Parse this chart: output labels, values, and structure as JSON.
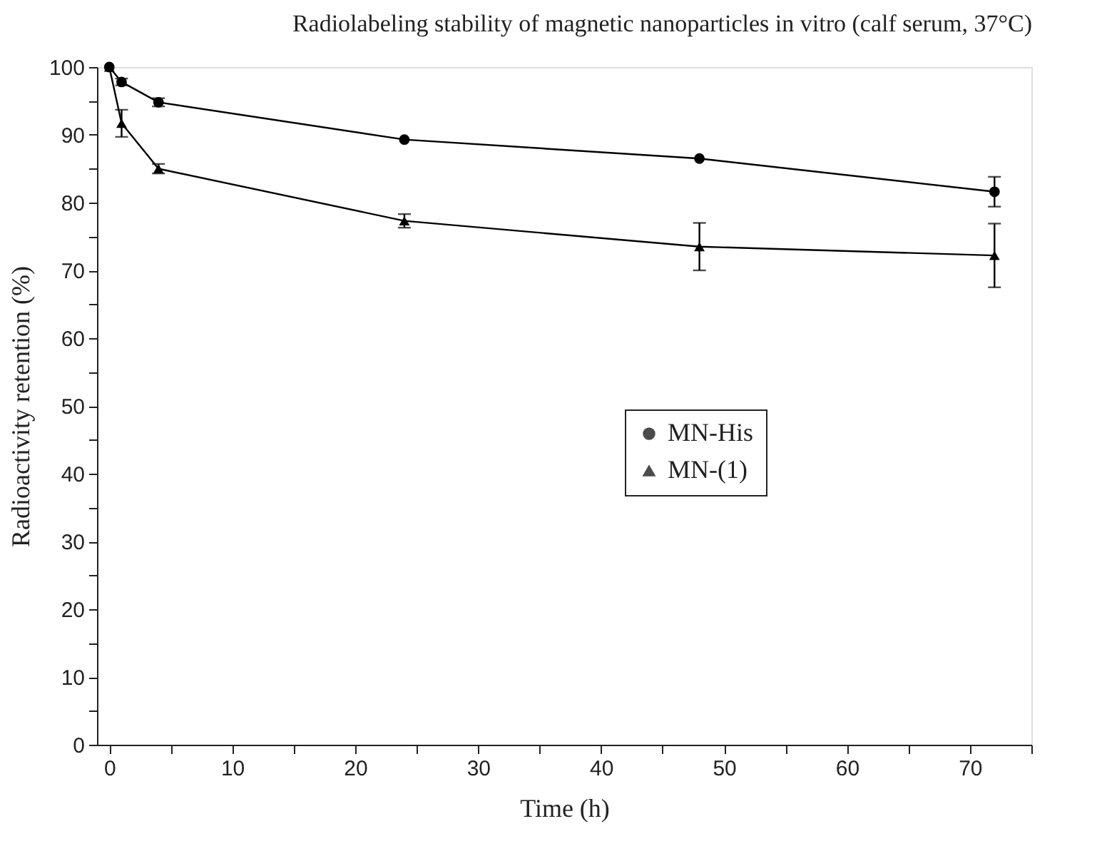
{
  "chart_data": {
    "type": "line",
    "title": "Radiolabeling stability of magnetic nanoparticles in vitro (calf serum, 37°C)",
    "xlabel": "Time (h)",
    "ylabel": "Radioactivity retention (%)",
    "x": [
      0,
      1,
      4,
      24,
      48,
      72
    ],
    "series": [
      {
        "name": "MN-His",
        "color": "#000000",
        "marker": "circle",
        "values": [
          100,
          97.8,
          94.8,
          89.3,
          86.5,
          81.6
        ],
        "errors": [
          null,
          0.5,
          0.6,
          null,
          null,
          2.2
        ]
      },
      {
        "name": "MN-(1)",
        "color": "#000000",
        "marker": "triangle",
        "values": [
          100,
          91.7,
          85.0,
          77.3,
          73.5,
          72.2
        ],
        "errors": [
          null,
          2.0,
          0.7,
          1.0,
          3.5,
          4.7
        ]
      }
    ],
    "xlim": [
      -1,
      75
    ],
    "ylim": [
      0,
      100
    ],
    "xticks": [
      0,
      {
        "value": 5,
        "label": null
      },
      10,
      {
        "value": 15,
        "label": null
      },
      20,
      {
        "value": 25,
        "label": null
      },
      30,
      {
        "value": 35,
        "label": null
      },
      40,
      {
        "value": 45,
        "label": null
      },
      50,
      {
        "value": 55,
        "label": null
      },
      60,
      {
        "value": 65,
        "label": null
      },
      70,
      {
        "value": 75,
        "label": null
      }
    ],
    "yticks": [
      0,
      {
        "value": 5,
        "label": null
      },
      10,
      {
        "value": 15,
        "label": null
      },
      20,
      {
        "value": 25,
        "label": null
      },
      30,
      {
        "value": 35,
        "label": null
      },
      40,
      {
        "value": 45,
        "label": null
      },
      50,
      {
        "value": 55,
        "label": null
      },
      60,
      {
        "value": 65,
        "label": null
      },
      70,
      {
        "value": 75,
        "label": null
      },
      80,
      {
        "value": 85,
        "label": null
      },
      90,
      {
        "value": 95,
        "label": null
      },
      100
    ],
    "legend": "right",
    "grid": false,
    "line_style": "solid"
  }
}
